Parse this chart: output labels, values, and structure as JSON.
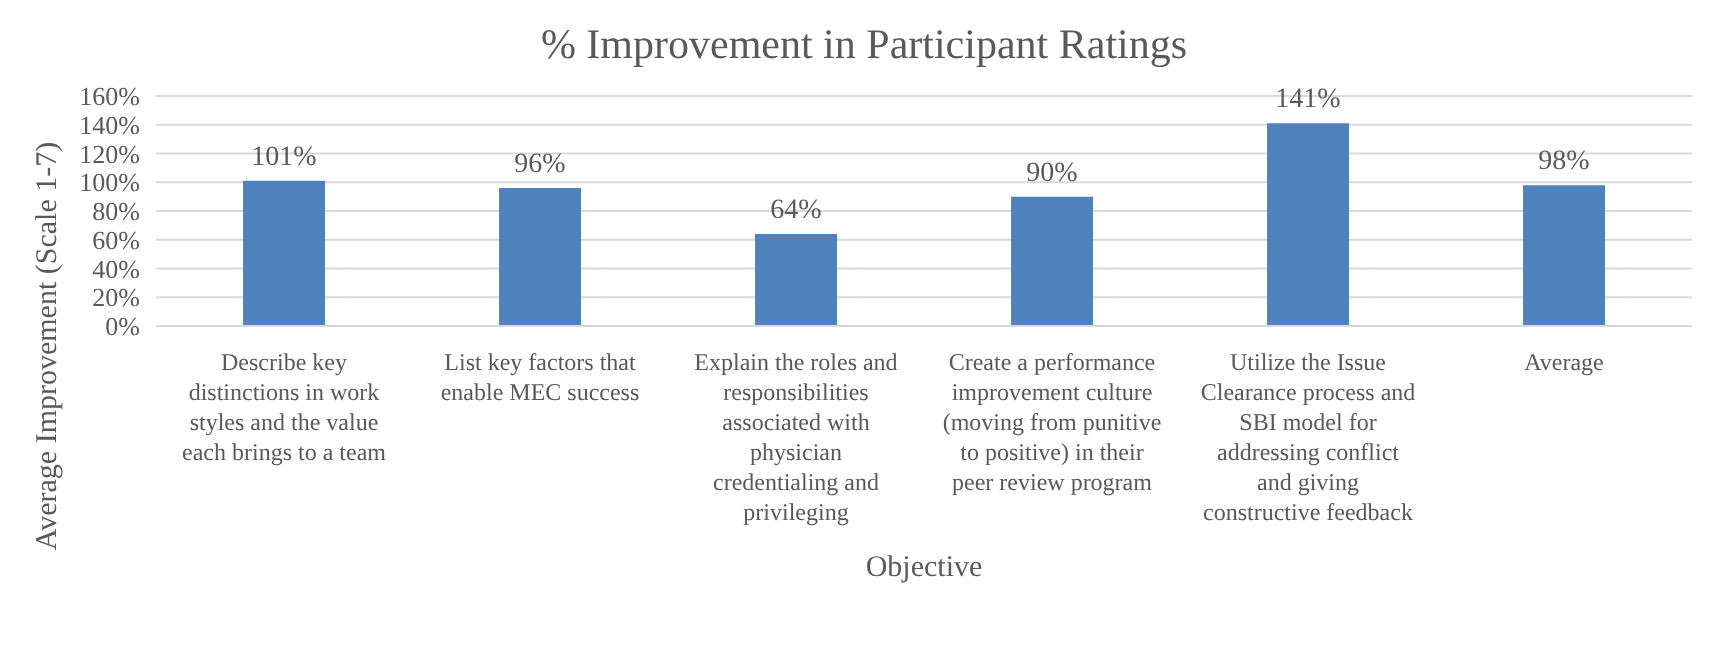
{
  "chart_data": {
    "type": "bar",
    "title": "% Improvement in Participant Ratings",
    "xlabel": "Objective",
    "ylabel": "Average Improvement (Scale 1-7)",
    "categories": [
      "Describe key distinctions in work styles and the value each brings to a team",
      "List key factors that enable MEC success",
      "Explain the roles and responsibilities associated with physician credentialing and privileging",
      "Create a performance improvement culture (moving from punitive to positive) in their peer review program",
      "Utilize the Issue Clearance process and SBI model for addressing conflict and giving constructive feedback",
      "Average"
    ],
    "values": [
      101,
      96,
      64,
      90,
      141,
      98
    ],
    "value_labels": [
      "101%",
      "96%",
      "64%",
      "90%",
      "141%",
      "98%"
    ],
    "color": "#4f81bd",
    "ylim": [
      0,
      160
    ],
    "yticks": [
      {
        "value": 0,
        "label": "0%"
      },
      {
        "value": 20,
        "label": "20%"
      },
      {
        "value": 40,
        "label": "40%"
      },
      {
        "value": 60,
        "label": "60%"
      },
      {
        "value": 80,
        "label": "80%"
      },
      {
        "value": 100,
        "label": "100%"
      },
      {
        "value": 120,
        "label": "120%"
      },
      {
        "value": 140,
        "label": "140%"
      },
      {
        "value": 160,
        "label": "160%"
      }
    ],
    "grid": "y",
    "legend": false
  }
}
